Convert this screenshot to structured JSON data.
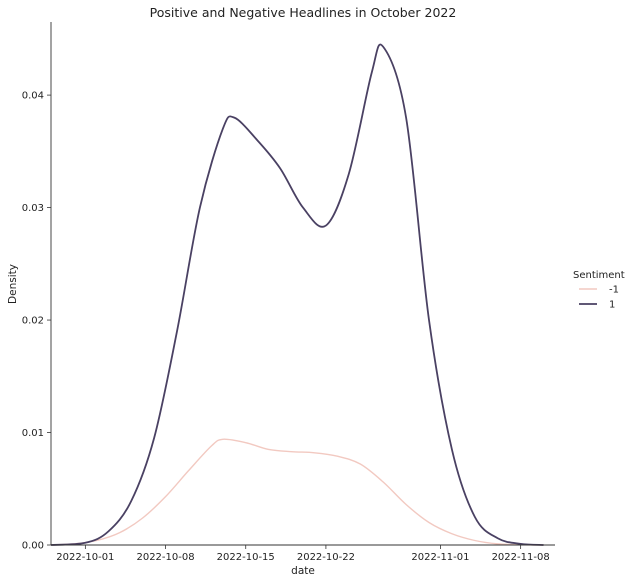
{
  "chart_data": {
    "type": "line",
    "title": "Positive and Negative Headlines in October 2022",
    "xlabel": "date",
    "ylabel": "Density",
    "x_scale": "date",
    "xlim": [
      "2022-09-28",
      "2022-11-11"
    ],
    "ylim": [
      0,
      0.0465
    ],
    "x_ticks": [
      "2022-10-01",
      "2022-10-08",
      "2022-10-15",
      "2022-10-22",
      "2022-11-01",
      "2022-11-08"
    ],
    "y_ticks": [
      "0.00",
      "0.01",
      "0.02",
      "0.03",
      "0.04"
    ],
    "grid": false,
    "legend": {
      "title": "Sentiment",
      "placement": "right"
    },
    "series": [
      {
        "name": "-1",
        "color": "#f2c9c1",
        "x": [
          "2022-09-28",
          "2022-09-30",
          "2022-10-02",
          "2022-10-04",
          "2022-10-06",
          "2022-10-08",
          "2022-10-10",
          "2022-10-12",
          "2022-10-13",
          "2022-10-15",
          "2022-10-17",
          "2022-10-19",
          "2022-10-21",
          "2022-10-23",
          "2022-10-25",
          "2022-10-27",
          "2022-10-29",
          "2022-10-31",
          "2022-11-02",
          "2022-11-04",
          "2022-11-06",
          "2022-11-08",
          "2022-11-10"
        ],
        "y": [
          0,
          0.0001,
          0.0004,
          0.0011,
          0.0024,
          0.0043,
          0.0066,
          0.0088,
          0.0094,
          0.0091,
          0.0085,
          0.0083,
          0.0082,
          0.0079,
          0.0072,
          0.0056,
          0.0036,
          0.002,
          0.001,
          0.0004,
          0.0001,
          3e-05,
          0
        ]
      },
      {
        "name": "1",
        "color": "#4a4163",
        "x": [
          "2022-09-28",
          "2022-10-01",
          "2022-10-03",
          "2022-10-05",
          "2022-10-07",
          "2022-10-09",
          "2022-10-11",
          "2022-10-13",
          "2022-10-14",
          "2022-10-16",
          "2022-10-18",
          "2022-10-20",
          "2022-10-22",
          "2022-10-24",
          "2022-10-26",
          "2022-10-27",
          "2022-10-29",
          "2022-10-31",
          "2022-11-02",
          "2022-11-04",
          "2022-11-06",
          "2022-11-08",
          "2022-11-10"
        ],
        "y": [
          0,
          0.0002,
          0.0012,
          0.0039,
          0.0095,
          0.019,
          0.03,
          0.037,
          0.038,
          0.036,
          0.0335,
          0.03,
          0.0284,
          0.033,
          0.042,
          0.0443,
          0.038,
          0.02,
          0.0085,
          0.0025,
          0.0006,
          0.0001,
          0
        ]
      }
    ]
  }
}
